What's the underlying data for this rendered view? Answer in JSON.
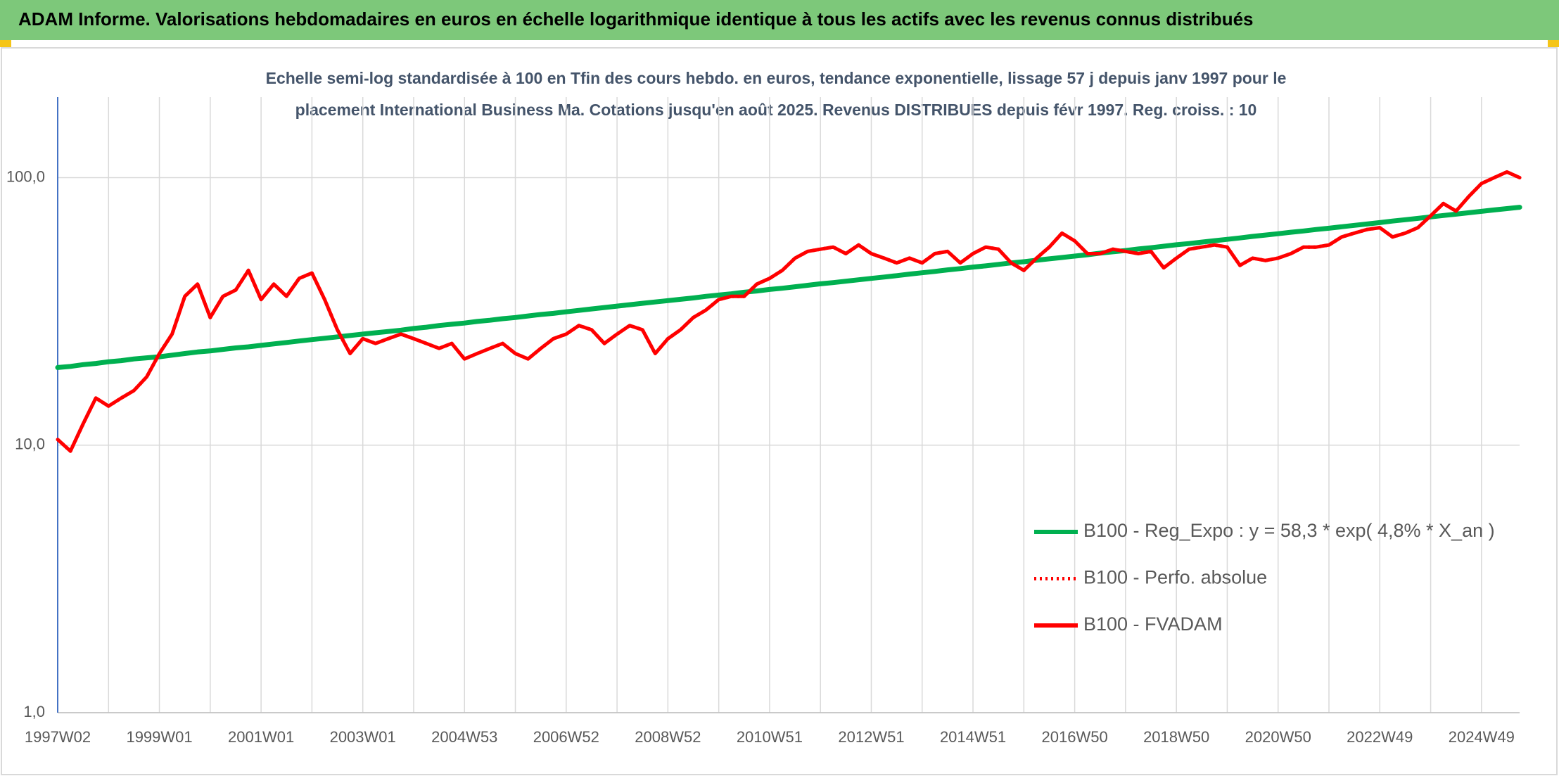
{
  "chart_data": {
    "type": "line",
    "title": "ADAM Informe. Valorisations hebdomadaires en euros en échelle logarithmique identique à tous les actifs avec les revenus connus distribués",
    "subtitle": [
      "Echelle semi-log standardisée à 100 en Tfin des cours hebdo. en euros, tendance exponentielle, lissage 57 j depuis janv 1997 pour le",
      "placement International Business Ma. Cotations jusqu'en août 2025. Revenus DISTRIBUES depuis févr 1997. Reg. croiss. : 10"
    ],
    "log_scale": true,
    "grid": true,
    "legend": "lower right",
    "ylim": [
      1,
      200
    ],
    "yticks": [
      {
        "value": 1,
        "label": "1,0"
      },
      {
        "value": 10,
        "label": "10,0"
      },
      {
        "value": 100,
        "label": "100,0"
      }
    ],
    "categories": [
      "1997W02",
      null,
      null,
      null,
      null,
      null,
      null,
      null,
      "1999W01",
      null,
      null,
      null,
      null,
      null,
      null,
      null,
      "2001W01",
      null,
      null,
      null,
      null,
      null,
      null,
      null,
      "2003W01",
      null,
      null,
      null,
      null,
      null,
      null,
      null,
      "2004W53",
      null,
      null,
      null,
      null,
      null,
      null,
      null,
      "2006W52",
      null,
      null,
      null,
      null,
      null,
      null,
      null,
      "2008W52",
      null,
      null,
      null,
      null,
      null,
      null,
      null,
      "2010W51",
      null,
      null,
      null,
      null,
      null,
      null,
      null,
      "2012W51",
      null,
      null,
      null,
      null,
      null,
      null,
      null,
      "2014W51",
      null,
      null,
      null,
      null,
      null,
      null,
      null,
      "2016W50",
      null,
      null,
      null,
      null,
      null,
      null,
      null,
      "2018W50",
      null,
      null,
      null,
      null,
      null,
      null,
      null,
      "2020W50",
      null,
      null,
      null,
      null,
      null,
      null,
      null,
      "2022W49",
      null,
      null,
      null,
      null,
      null,
      null,
      null,
      "2024W49",
      null,
      null,
      null
    ],
    "series": [
      {
        "name": "B100 - Reg_Expo : y = 58,3 * exp( 4,8% *  X_an )",
        "color": "#00b050",
        "line_style": "solid",
        "values": [
          19.5,
          19.7,
          20.0,
          20.2,
          20.5,
          20.7,
          21.0,
          21.2,
          21.4,
          21.7,
          22.0,
          22.3,
          22.5,
          22.8,
          23.1,
          23.3,
          23.6,
          23.9,
          24.2,
          24.5,
          24.8,
          25.1,
          25.4,
          25.7,
          26.0,
          26.3,
          26.6,
          26.9,
          27.3,
          27.6,
          28.0,
          28.3,
          28.6,
          29.0,
          29.3,
          29.7,
          30.0,
          30.4,
          30.8,
          31.1,
          31.5,
          31.9,
          32.3,
          32.7,
          33.1,
          33.5,
          33.9,
          34.3,
          34.7,
          35.1,
          35.5,
          36.0,
          36.4,
          36.8,
          37.3,
          37.7,
          38.2,
          38.6,
          39.1,
          39.6,
          40.1,
          40.5,
          41.0,
          41.5,
          42.0,
          42.5,
          43.0,
          43.6,
          44.1,
          44.6,
          45.2,
          45.7,
          46.3,
          46.8,
          47.4,
          48.0,
          48.5,
          49.1,
          49.7,
          50.3,
          50.9,
          51.5,
          52.2,
          52.8,
          53.4,
          54.1,
          54.7,
          55.4,
          56.1,
          56.7,
          57.4,
          58.1,
          58.8,
          59.5,
          60.3,
          61.0,
          61.7,
          62.5,
          63.2,
          64.0,
          64.7,
          65.5,
          66.3,
          67.1,
          67.9,
          68.8,
          69.6,
          70.4,
          71.3,
          72.2,
          73.0,
          73.9,
          74.8,
          75.7,
          76.6,
          77.5
        ]
      },
      {
        "name": "B100 - Perfo. absolue",
        "color": "#ff0000",
        "line_style": "dotted",
        "values": [
          10.5,
          9.5,
          12,
          15,
          14,
          15,
          16,
          18,
          22,
          26,
          36,
          40,
          30,
          36,
          38,
          45,
          35,
          40,
          36,
          42,
          44,
          35,
          27,
          22,
          25,
          24,
          25,
          26,
          25,
          24,
          23,
          24,
          21,
          22,
          23,
          24,
          22,
          21,
          23,
          25,
          26,
          28,
          27,
          24,
          26,
          28,
          27,
          22,
          25,
          27,
          30,
          32,
          35,
          36,
          36,
          40,
          42,
          45,
          50,
          53,
          54,
          55,
          52,
          56,
          52,
          50,
          48,
          50,
          48,
          52,
          53,
          48,
          52,
          55,
          54,
          48,
          45,
          50,
          55,
          62,
          58,
          52,
          52,
          54,
          53,
          52,
          53,
          46,
          50,
          54,
          55,
          56,
          55,
          47,
          50,
          49,
          50,
          52,
          55,
          55,
          56,
          60,
          62,
          64,
          65,
          60,
          62,
          65,
          72,
          80,
          75,
          85,
          95,
          100,
          105,
          100
        ]
      },
      {
        "name": "B100 - FVADAM",
        "color": "#ff0000",
        "line_style": "solid",
        "values": [
          10.5,
          9.5,
          12,
          15,
          14,
          15,
          16,
          18,
          22,
          26,
          36,
          40,
          30,
          36,
          38,
          45,
          35,
          40,
          36,
          42,
          44,
          35,
          27,
          22,
          25,
          24,
          25,
          26,
          25,
          24,
          23,
          24,
          21,
          22,
          23,
          24,
          22,
          21,
          23,
          25,
          26,
          28,
          27,
          24,
          26,
          28,
          27,
          22,
          25,
          27,
          30,
          32,
          35,
          36,
          36,
          40,
          42,
          45,
          50,
          53,
          54,
          55,
          52,
          56,
          52,
          50,
          48,
          50,
          48,
          52,
          53,
          48,
          52,
          55,
          54,
          48,
          45,
          50,
          55,
          62,
          58,
          52,
          52,
          54,
          53,
          52,
          53,
          46,
          50,
          54,
          55,
          56,
          55,
          47,
          50,
          49,
          50,
          52,
          55,
          55,
          56,
          60,
          62,
          64,
          65,
          60,
          62,
          65,
          72,
          80,
          75,
          85,
          95,
          100,
          105,
          100
        ]
      }
    ]
  }
}
